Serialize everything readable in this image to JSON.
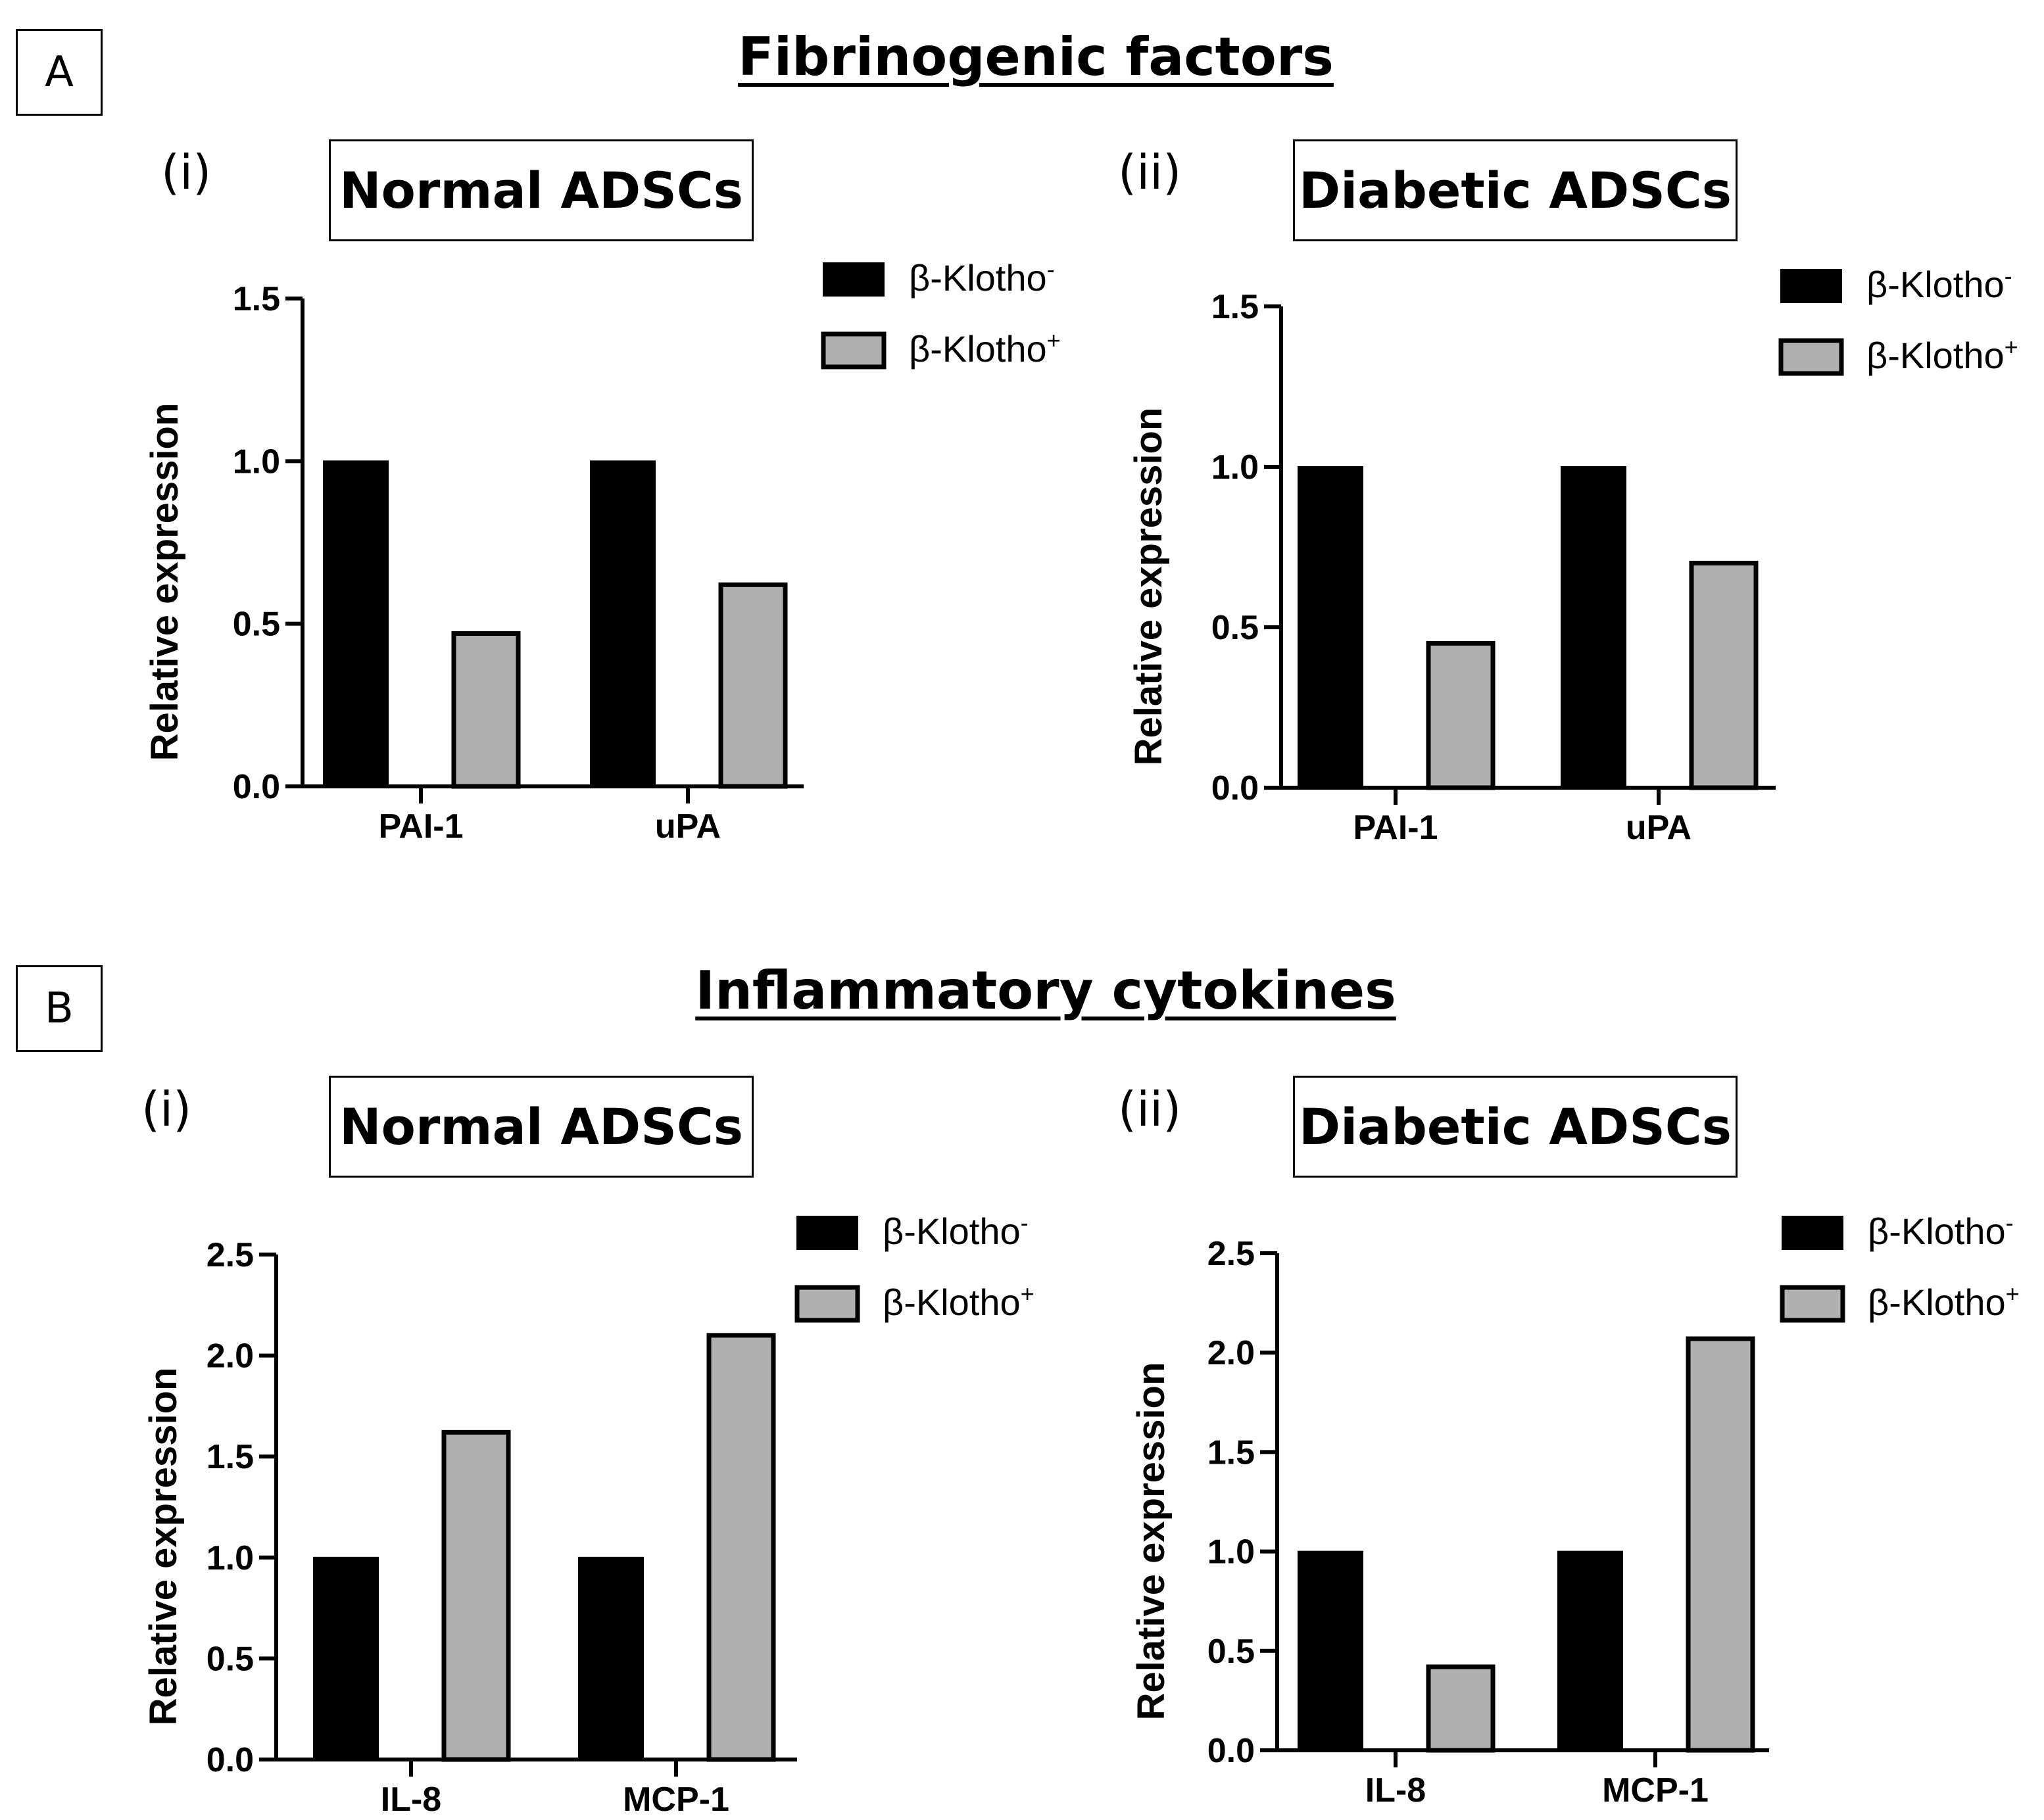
{
  "panels": [
    {
      "label": "A",
      "title": "Fibrinogenic factors"
    },
    {
      "label": "B",
      "title": "Inflammatory cytokines"
    }
  ],
  "colors": {
    "klotho_neg": "#000000",
    "klotho_pos": "#b0b0b0",
    "axis": "#000000"
  },
  "chart_data": [
    {
      "type": "bar",
      "panel": "A",
      "sub": "(i)",
      "title": "Normal ADSCs",
      "ylabel": "Relative expression",
      "xlabel": "",
      "categories": [
        "PAI-1",
        "uPA"
      ],
      "ylim": [
        0,
        1.5
      ],
      "yticks": [
        "0.0",
        "0.5",
        "1.0",
        "1.5"
      ],
      "series": [
        {
          "name": "β-Klotho",
          "sup": "-",
          "values": [
            1.0,
            1.0
          ]
        },
        {
          "name": "β-Klotho",
          "sup": "+",
          "values": [
            0.47,
            0.62
          ]
        }
      ]
    },
    {
      "type": "bar",
      "panel": "A",
      "sub": "(ii)",
      "title": "Diabetic ADSCs",
      "ylabel": "Relative expression",
      "xlabel": "",
      "categories": [
        "PAI-1",
        "uPA"
      ],
      "ylim": [
        0,
        1.5
      ],
      "yticks": [
        "0.0",
        "0.5",
        "1.0",
        "1.5"
      ],
      "series": [
        {
          "name": "β-Klotho",
          "sup": "-",
          "values": [
            1.0,
            1.0
          ]
        },
        {
          "name": "β-Klotho",
          "sup": "+",
          "values": [
            0.45,
            0.7
          ]
        }
      ]
    },
    {
      "type": "bar",
      "panel": "B",
      "sub": "(i)",
      "title": "Normal ADSCs",
      "ylabel": "Relative expression",
      "xlabel": "",
      "categories": [
        "IL-8",
        "MCP-1"
      ],
      "ylim": [
        0,
        2.5
      ],
      "yticks": [
        "0.0",
        "0.5",
        "1.0",
        "1.5",
        "2.0",
        "2.5"
      ],
      "series": [
        {
          "name": "β-Klotho",
          "sup": "-",
          "values": [
            1.0,
            1.0
          ]
        },
        {
          "name": "β-Klotho",
          "sup": "+",
          "values": [
            1.62,
            2.1
          ]
        }
      ]
    },
    {
      "type": "bar",
      "panel": "B",
      "sub": "(ii)",
      "title": "Diabetic ADSCs",
      "ylabel": "Relative expression",
      "xlabel": "",
      "categories": [
        "IL-8",
        "MCP-1"
      ],
      "ylim": [
        0,
        2.5
      ],
      "yticks": [
        "0.0",
        "0.5",
        "1.0",
        "1.5",
        "2.0",
        "2.5"
      ],
      "series": [
        {
          "name": "β-Klotho",
          "sup": "-",
          "values": [
            1.0,
            1.0
          ]
        },
        {
          "name": "β-Klotho",
          "sup": "+",
          "values": [
            0.42,
            2.07
          ]
        }
      ]
    }
  ]
}
